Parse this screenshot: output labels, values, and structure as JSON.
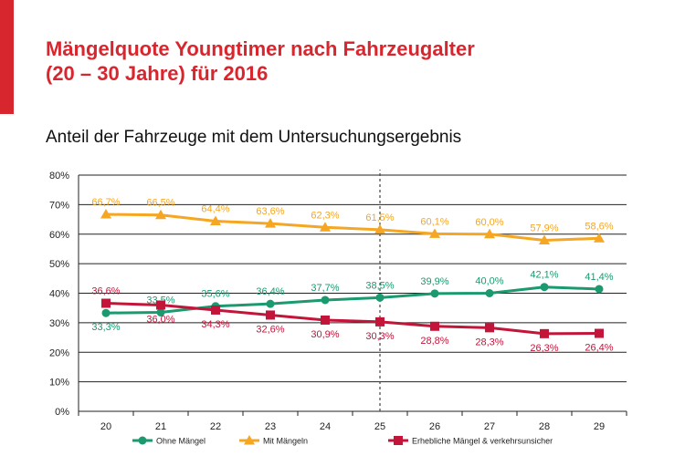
{
  "header": {
    "title_line1": "Mängelquote Youngtimer nach Fahrzeugalter",
    "title_line2": "(20 – 30 Jahre) für 2016"
  },
  "colors": {
    "accent": "#d8262e",
    "ohne": "#1a9a6e",
    "mit": "#f5a623",
    "erheblich": "#c3153a"
  },
  "chart_data": {
    "type": "line",
    "subtitle": "Anteil der Fahrzeuge mit dem Untersuchungsergebnis",
    "x": [
      "20",
      "21",
      "22",
      "23",
      "24",
      "25",
      "26",
      "27",
      "28",
      "29"
    ],
    "ylim": [
      0,
      80
    ],
    "yticks": [
      "0%",
      "10%",
      "20%",
      "30%",
      "40%",
      "50%",
      "60%",
      "70%",
      "80%"
    ],
    "grid": true,
    "reference_line_x": "25",
    "legend_position": "bottom",
    "series": [
      {
        "name": "Ohne Mängel",
        "values": [
          33.3,
          33.5,
          35.6,
          36.4,
          37.7,
          38.5,
          39.9,
          40.0,
          42.1,
          41.4
        ],
        "labels": [
          "33,3%",
          "33,5%",
          "35,6%",
          "36,4%",
          "37,7%",
          "38,5%",
          "39,9%",
          "40,0%",
          "42,1%",
          "41,4%"
        ],
        "label_pos": [
          "below",
          "above",
          "above",
          "above",
          "above",
          "above",
          "above",
          "above",
          "above",
          "above"
        ],
        "marker": "circle"
      },
      {
        "name": "Mit Mängeln",
        "values": [
          66.7,
          66.5,
          64.4,
          63.6,
          62.3,
          61.5,
          60.1,
          60.0,
          57.9,
          58.6
        ],
        "labels": [
          "66,7%",
          "66,5%",
          "64,4%",
          "63,6%",
          "62,3%",
          "61,5%",
          "60,1%",
          "60,0%",
          "57,9%",
          "58,6%"
        ],
        "label_pos": [
          "above",
          "above",
          "above",
          "above",
          "above",
          "above",
          "above",
          "above",
          "above",
          "above"
        ],
        "marker": "triangle"
      },
      {
        "name": "Erhebliche Mängel & verkehrsunsicher",
        "values": [
          36.6,
          36.0,
          34.3,
          32.6,
          30.9,
          30.3,
          28.8,
          28.3,
          26.3,
          26.4
        ],
        "labels": [
          "36,6%",
          "36,0%",
          "34,3%",
          "32,6%",
          "30,9%",
          "30,3%",
          "28,8%",
          "28,3%",
          "26,3%",
          "26,4%"
        ],
        "label_pos": [
          "above",
          "below",
          "below",
          "below",
          "below",
          "below",
          "below",
          "below",
          "below",
          "below"
        ],
        "marker": "square"
      }
    ]
  }
}
